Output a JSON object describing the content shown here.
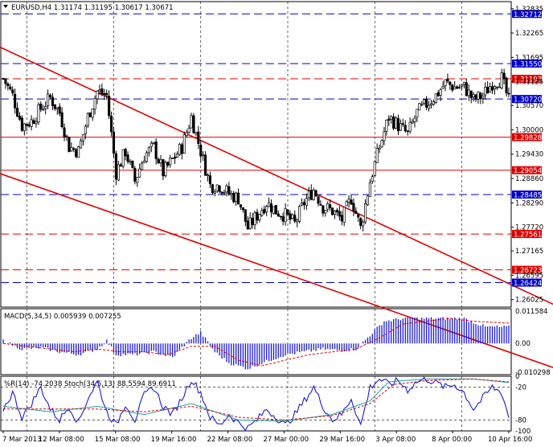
{
  "window": {
    "title": "EURUSD,H4  1.31174 1.31195 1.30617 1.30671"
  },
  "colors": {
    "background": "#ffffff",
    "candle": "#000000",
    "trendline": "#e00000",
    "level_red": "#e00000",
    "level_blue": "#0000cc",
    "macd_hist": "#1a1ad6",
    "macd_signal": "#e00000",
    "wpr_line": "#1a1ad6",
    "stoch_main": "#20a0a0",
    "stoch_signal": "#e00000",
    "badge_text": "#ffffff",
    "grid": "#000000"
  },
  "chart_data": [
    {
      "type": "candlestick",
      "title": "EURUSD,H4  1.31174 1.31195 1.30617 1.30671",
      "y_ticks": [
        "1.32835",
        "1.32265",
        "1.31695",
        "1.31125",
        "1.30570",
        "1.30000",
        "1.29430",
        "1.28860",
        "1.28290",
        "1.27720",
        "1.27165",
        "1.26595",
        "1.26025"
      ],
      "ylim": [
        1.2585,
        1.33
      ],
      "x_labels": [
        "7 Mar 2013",
        "12 Mar 08:00",
        "15 Mar 08:00",
        "19 Mar 16:00",
        "22 Mar 08:00",
        "27 Mar 00:00",
        "29 Mar 16:00",
        "3 Apr 08:00",
        "8 Apr 00:00",
        "10 Apr 16:00"
      ],
      "levels": [
        {
          "value": 1.32712,
          "label": "1.32712",
          "color": "blue",
          "style": "dashed"
        },
        {
          "value": 1.3155,
          "label": "1.31550",
          "color": "blue",
          "style": "dashed"
        },
        {
          "value": 1.31193,
          "label": "1.31193",
          "color": "red",
          "style": "dashed"
        },
        {
          "value": 1.3072,
          "label": "1.30720",
          "color": "blue",
          "style": "dashed"
        },
        {
          "value": 1.29828,
          "label": "1.29828",
          "color": "red",
          "style": "solid"
        },
        {
          "value": 1.29054,
          "label": "1.29054",
          "color": "red",
          "style": "solid"
        },
        {
          "value": 1.28485,
          "label": "1.28485",
          "color": "blue",
          "style": "dashed"
        },
        {
          "value": 1.27561,
          "label": "1.27561",
          "color": "red",
          "style": "dashed"
        },
        {
          "value": 1.26723,
          "label": "1.26723",
          "color": "red",
          "style": "dashed"
        },
        {
          "value": 1.26424,
          "label": "1.26424",
          "color": "blue",
          "style": "dashed"
        }
      ],
      "anchors": [
        [
          0,
          1.312
        ],
        [
          4,
          1.308
        ],
        [
          8,
          1.301
        ],
        [
          12,
          1.302
        ],
        [
          16,
          1.305
        ],
        [
          20,
          1.3075
        ],
        [
          24,
          1.304
        ],
        [
          28,
          1.296
        ],
        [
          32,
          1.295
        ],
        [
          36,
          1.303
        ],
        [
          40,
          1.309
        ],
        [
          44,
          1.308
        ],
        [
          48,
          1.29
        ],
        [
          52,
          1.295
        ],
        [
          56,
          1.288
        ],
        [
          60,
          1.294
        ],
        [
          64,
          1.296
        ],
        [
          68,
          1.29
        ],
        [
          72,
          1.293
        ],
        [
          76,
          1.296
        ],
        [
          80,
          1.303
        ],
        [
          84,
          1.295
        ],
        [
          88,
          1.287
        ],
        [
          92,
          1.287
        ],
        [
          96,
          1.285
        ],
        [
          100,
          1.284
        ],
        [
          104,
          1.277
        ],
        [
          108,
          1.28
        ],
        [
          112,
          1.283
        ],
        [
          116,
          1.281
        ],
        [
          120,
          1.28
        ],
        [
          124,
          1.278
        ],
        [
          128,
          1.283
        ],
        [
          132,
          1.286
        ],
        [
          136,
          1.282
        ],
        [
          140,
          1.281
        ],
        [
          144,
          1.279
        ],
        [
          148,
          1.284
        ],
        [
          152,
          1.277
        ],
        [
          156,
          1.288
        ],
        [
          160,
          1.296
        ],
        [
          164,
          1.303
        ],
        [
          168,
          1.301
        ],
        [
          172,
          1.299
        ],
        [
          176,
          1.304
        ],
        [
          180,
          1.306
        ],
        [
          184,
          1.308
        ],
        [
          188,
          1.311
        ],
        [
          192,
          1.31
        ],
        [
          196,
          1.31
        ],
        [
          200,
          1.307
        ],
        [
          204,
          1.308
        ],
        [
          208,
          1.311
        ],
        [
          212,
          1.312
        ],
        [
          215,
          1.3067
        ]
      ],
      "trendlines": [
        {
          "from": [
            0,
            1.319
          ],
          "to": [
            215,
            1.264
          ]
        },
        {
          "from": [
            0,
            1.2895
          ],
          "to": [
            215,
            1.248
          ]
        }
      ],
      "vgrid_bars": [
        10,
        47,
        84,
        121,
        158,
        195
      ]
    },
    {
      "type": "bar",
      "title": "MACD(5,34,5) 0.005939 0.007255",
      "y_ticks": [
        "0.011584",
        "0.00",
        "-0.010298"
      ],
      "ylim": [
        -0.0112,
        0.0125
      ],
      "anchors": [
        [
          0,
          0.001
        ],
        [
          8,
          -0.002
        ],
        [
          16,
          -0.0015
        ],
        [
          24,
          -0.003
        ],
        [
          32,
          -0.004
        ],
        [
          40,
          -0.002
        ],
        [
          44,
          0.001
        ],
        [
          48,
          -0.004
        ],
        [
          56,
          -0.004
        ],
        [
          64,
          -0.003
        ],
        [
          72,
          -0.005
        ],
        [
          80,
          0.002
        ],
        [
          84,
          0.004
        ],
        [
          90,
          -0.003
        ],
        [
          96,
          -0.007
        ],
        [
          104,
          -0.009
        ],
        [
          110,
          -0.007
        ],
        [
          120,
          -0.004
        ],
        [
          128,
          -0.003
        ],
        [
          136,
          -0.002
        ],
        [
          144,
          -0.0025
        ],
        [
          150,
          -0.002
        ],
        [
          156,
          0.003
        ],
        [
          162,
          0.008
        ],
        [
          170,
          0.009
        ],
        [
          180,
          0.009
        ],
        [
          190,
          0.009
        ],
        [
          196,
          0.009
        ],
        [
          205,
          0.006
        ],
        [
          215,
          0.0059
        ]
      ],
      "signal_anchors": [
        [
          0,
          0.0
        ],
        [
          10,
          -0.001
        ],
        [
          20,
          -0.002
        ],
        [
          30,
          -0.003
        ],
        [
          40,
          -0.002
        ],
        [
          50,
          -0.003
        ],
        [
          60,
          -0.003
        ],
        [
          70,
          -0.004
        ],
        [
          80,
          -0.001
        ],
        [
          90,
          -0.001
        ],
        [
          100,
          -0.006
        ],
        [
          110,
          -0.008
        ],
        [
          120,
          -0.006
        ],
        [
          130,
          -0.004
        ],
        [
          140,
          -0.003
        ],
        [
          150,
          -0.002
        ],
        [
          160,
          0.002
        ],
        [
          170,
          0.007
        ],
        [
          180,
          0.008
        ],
        [
          190,
          0.009
        ],
        [
          200,
          0.008
        ],
        [
          215,
          0.0073
        ]
      ]
    },
    {
      "type": "line",
      "title": "%R(14) -74.2038  Stoch(34,5,13) 88.5594 89.6911",
      "y_ticks": [
        "0",
        "-20",
        "-80",
        "-100"
      ],
      "ylim": [
        -100,
        0
      ],
      "series": [
        {
          "name": "%R(14)",
          "anchors": [
            [
              0,
              -60
            ],
            [
              4,
              -30
            ],
            [
              8,
              -75
            ],
            [
              12,
              -50
            ],
            [
              16,
              -20
            ],
            [
              20,
              -60
            ],
            [
              24,
              -80
            ],
            [
              28,
              -55
            ],
            [
              32,
              -85
            ],
            [
              36,
              -40
            ],
            [
              40,
              -10
            ],
            [
              44,
              -65
            ],
            [
              48,
              -90
            ],
            [
              52,
              -50
            ],
            [
              56,
              -80
            ],
            [
              60,
              -35
            ],
            [
              64,
              -20
            ],
            [
              68,
              -55
            ],
            [
              72,
              -70
            ],
            [
              76,
              -40
            ],
            [
              80,
              -5
            ],
            [
              84,
              -30
            ],
            [
              88,
              -75
            ],
            [
              92,
              -90
            ],
            [
              96,
              -70
            ],
            [
              100,
              -85
            ],
            [
              104,
              -95
            ],
            [
              108,
              -80
            ],
            [
              112,
              -60
            ],
            [
              116,
              -75
            ],
            [
              120,
              -90
            ],
            [
              124,
              -70
            ],
            [
              128,
              -45
            ],
            [
              132,
              -20
            ],
            [
              136,
              -55
            ],
            [
              140,
              -80
            ],
            [
              144,
              -70
            ],
            [
              148,
              -40
            ],
            [
              152,
              -90
            ],
            [
              156,
              -20
            ],
            [
              160,
              -5
            ],
            [
              164,
              -15
            ],
            [
              168,
              -8
            ],
            [
              172,
              -25
            ],
            [
              176,
              -10
            ],
            [
              180,
              -5
            ],
            [
              184,
              -12
            ],
            [
              188,
              -20
            ],
            [
              192,
              -15
            ],
            [
              196,
              -30
            ],
            [
              200,
              -60
            ],
            [
              204,
              -40
            ],
            [
              208,
              -20
            ],
            [
              212,
              -30
            ],
            [
              215,
              -74.2
            ]
          ]
        },
        {
          "name": "Stoch main",
          "anchors": [
            [
              0,
              -55
            ],
            [
              20,
              -65
            ],
            [
              40,
              -55
            ],
            [
              60,
              -70
            ],
            [
              80,
              -50
            ],
            [
              100,
              -80
            ],
            [
              120,
              -82
            ],
            [
              140,
              -70
            ],
            [
              156,
              -45
            ],
            [
              164,
              -10
            ],
            [
              180,
              -5
            ],
            [
              200,
              -5
            ],
            [
              215,
              -11.4
            ]
          ]
        },
        {
          "name": "Stoch signal",
          "anchors": [
            [
              0,
              -60
            ],
            [
              20,
              -60
            ],
            [
              40,
              -60
            ],
            [
              60,
              -65
            ],
            [
              80,
              -55
            ],
            [
              100,
              -75
            ],
            [
              120,
              -80
            ],
            [
              140,
              -72
            ],
            [
              156,
              -50
            ],
            [
              166,
              -15
            ],
            [
              180,
              -8
            ],
            [
              200,
              -5
            ],
            [
              215,
              -10.3
            ]
          ]
        }
      ]
    }
  ]
}
